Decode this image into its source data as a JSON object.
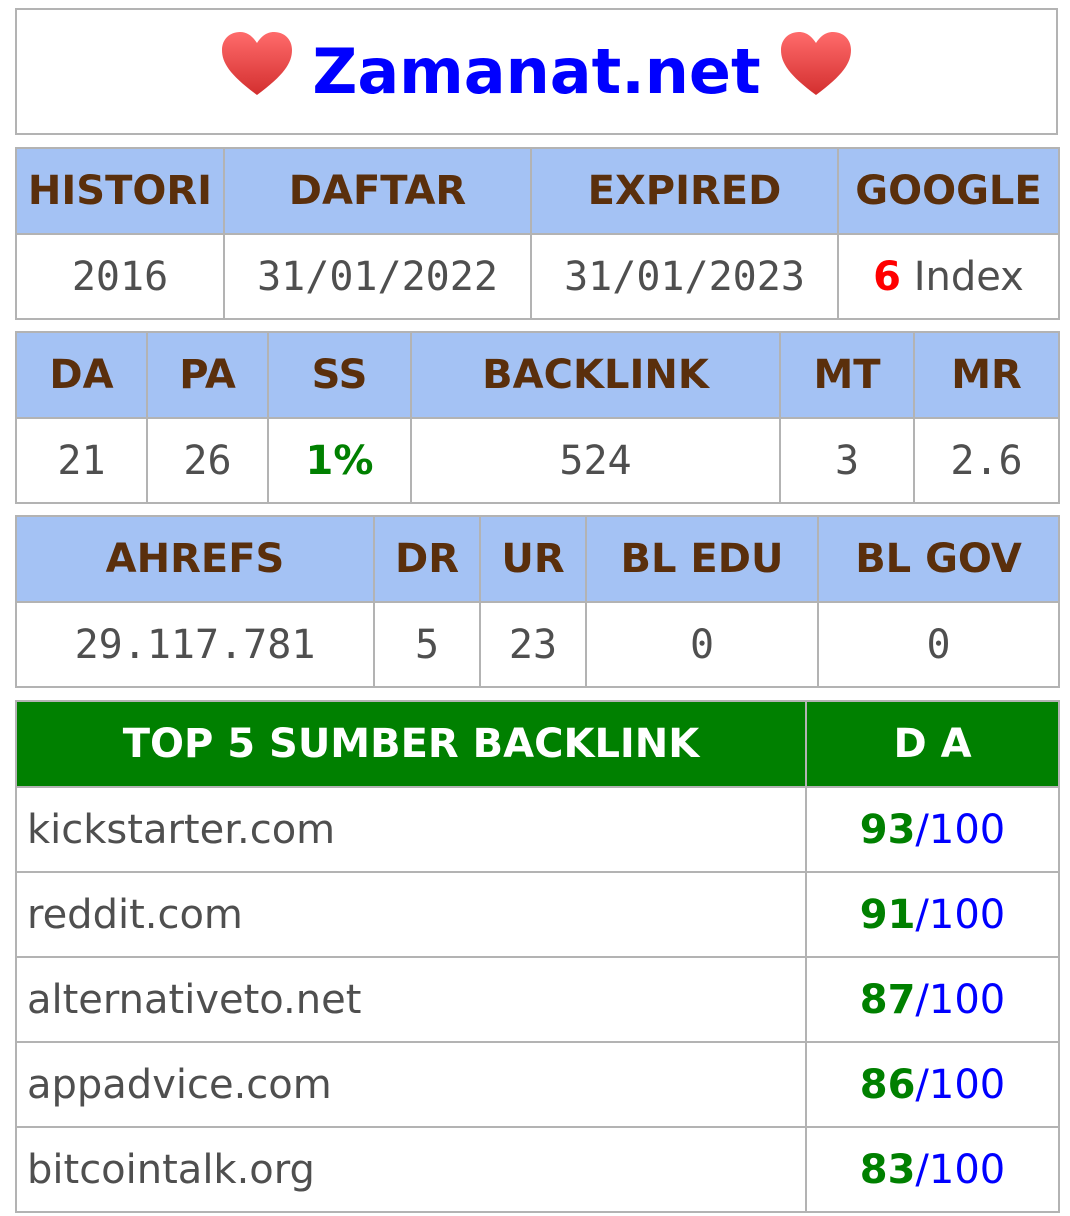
{
  "header": {
    "title": "Zamanat.net",
    "left_icon": "heart-icon",
    "right_icon": "heart-icon"
  },
  "table1": {
    "headers": [
      "HISTORI",
      "DAFTAR",
      "EXPIRED",
      "GOOGLE"
    ],
    "values": {
      "histori": "2016",
      "daftar": "31/01/2022",
      "expired": "31/01/2023",
      "google_count": "6",
      "google_label": "Index"
    }
  },
  "table2": {
    "headers": [
      "DA",
      "PA",
      "SS",
      "BACKLINK",
      "MT",
      "MR"
    ],
    "values": [
      "21",
      "26",
      "1%",
      "524",
      "3",
      "2.6"
    ]
  },
  "table3": {
    "headers": [
      "AHREFS",
      "DR",
      "UR",
      "BL EDU",
      "BL GOV"
    ],
    "values": [
      "29.117.781",
      "5",
      "23",
      "0",
      "0"
    ]
  },
  "top_backlinks": {
    "headers": [
      "TOP 5 SUMBER BACKLINK",
      "D A"
    ],
    "rows": [
      {
        "site": "kickstarter.com",
        "da": "93",
        "sep": "/",
        "max": "100"
      },
      {
        "site": "reddit.com",
        "da": "91",
        "sep": "/",
        "max": "100"
      },
      {
        "site": "alternativeto.net",
        "da": "87",
        "sep": "/",
        "max": "100"
      },
      {
        "site": "appadvice.com",
        "da": "86",
        "sep": "/",
        "max": "100"
      },
      {
        "site": "bitcointalk.org",
        "da": "83",
        "sep": "/",
        "max": "100"
      }
    ]
  },
  "colors": {
    "header_bg": "#a4c2f4",
    "header_text": "#5a2f0c",
    "green_header": "#008000",
    "title": "#0000ff",
    "heart": "#e53935"
  }
}
